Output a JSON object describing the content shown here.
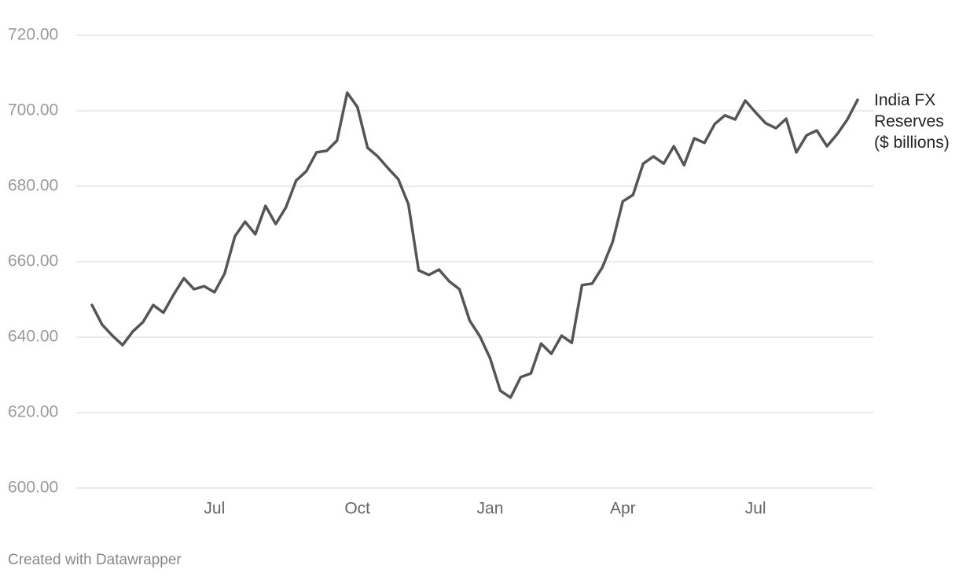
{
  "chart_data": {
    "type": "line",
    "categories": [
      null,
      null,
      null,
      null,
      null,
      null,
      null,
      null,
      null,
      null,
      null,
      null,
      "Jul",
      null,
      null,
      null,
      null,
      null,
      null,
      null,
      null,
      null,
      null,
      null,
      null,
      null,
      "Oct",
      null,
      null,
      null,
      null,
      null,
      null,
      null,
      null,
      null,
      null,
      null,
      null,
      "Jan",
      null,
      null,
      null,
      null,
      null,
      null,
      null,
      null,
      null,
      null,
      null,
      null,
      "Apr",
      null,
      null,
      null,
      null,
      null,
      null,
      null,
      null,
      null,
      null,
      null,
      null,
      "Jul",
      null,
      null,
      null,
      null,
      null,
      null,
      null,
      null,
      null,
      null
    ],
    "series": [
      {
        "name": "India FX Reserves ($ billions)",
        "color": "#555555",
        "values": [
          648.5,
          643.3,
          640.4,
          637.9,
          641.5,
          644,
          648.5,
          646.5,
          651.3,
          655.6,
          652.7,
          653.5,
          651.9,
          656.9,
          666.7,
          670.6,
          667.3,
          674.8,
          670,
          674.4,
          681.5,
          684,
          689,
          689.4,
          692.1,
          704.8,
          701,
          690.2,
          687.9,
          684.8,
          681.9,
          675.2,
          657.7,
          656.5,
          657.9,
          654.8,
          652.7,
          644.4,
          640.2,
          634.4,
          625.8,
          624,
          629.4,
          630.4,
          638.3,
          635.6,
          640.4,
          638.5,
          653.8,
          654.2,
          658.5,
          665.2,
          676,
          677.7,
          686,
          687.9,
          686,
          690.6,
          685.6,
          692.7,
          691.5,
          696.5,
          698.8,
          697.7,
          702.7,
          699.6,
          696.7,
          695.4,
          697.9,
          689,
          693.5,
          694.8,
          690.6,
          693.8,
          697.7,
          702.9
        ]
      }
    ],
    "ylim": [
      600,
      720
    ],
    "yticks": [
      {
        "value": 600,
        "label": "600.00"
      },
      {
        "value": 620,
        "label": "620.00"
      },
      {
        "value": 640,
        "label": "640.00"
      },
      {
        "value": 660,
        "label": "660.00"
      },
      {
        "value": 680,
        "label": "680.00"
      },
      {
        "value": 700,
        "label": "700.00"
      },
      {
        "value": 720,
        "label": "720.00"
      }
    ],
    "grid": true,
    "footer": "Created with Datawrapper"
  }
}
